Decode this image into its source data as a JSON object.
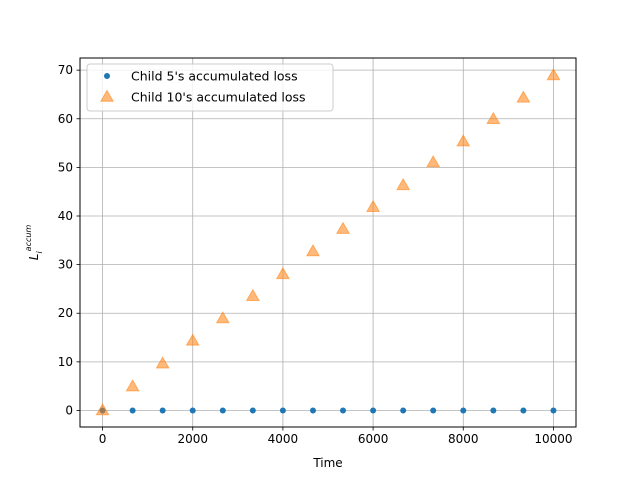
{
  "chart_data": {
    "type": "scatter",
    "title": "",
    "xlabel": "Time",
    "ylabel_base": "L",
    "ylabel_sub": "i",
    "ylabel_sup": "accum",
    "xlim": [
      -500,
      10500
    ],
    "ylim": [
      -3.4,
      72.5
    ],
    "xticks": [
      0,
      2000,
      4000,
      6000,
      8000,
      10000
    ],
    "yticks": [
      0,
      10,
      20,
      30,
      40,
      50,
      60,
      70
    ],
    "grid": true,
    "legend": "top-left",
    "x": [
      0,
      667,
      1333,
      2000,
      2667,
      3333,
      4000,
      4667,
      5333,
      6000,
      6667,
      7333,
      8000,
      8667,
      9333,
      10000
    ],
    "series": [
      {
        "name": "Child 5's accumulated loss",
        "marker": "circle",
        "color": "#1f77b4",
        "values": [
          0,
          0,
          0,
          0,
          0,
          0,
          0,
          0,
          0,
          0,
          0,
          0,
          0,
          0,
          0,
          0
        ]
      },
      {
        "name": "Child 10's accumulated loss",
        "marker": "triangle",
        "color": "#ff7f0e",
        "values": [
          0,
          4.9,
          9.6,
          14.3,
          18.9,
          23.5,
          28.0,
          32.7,
          37.3,
          41.8,
          46.3,
          51.0,
          55.3,
          59.9,
          64.3,
          68.9
        ]
      }
    ]
  }
}
